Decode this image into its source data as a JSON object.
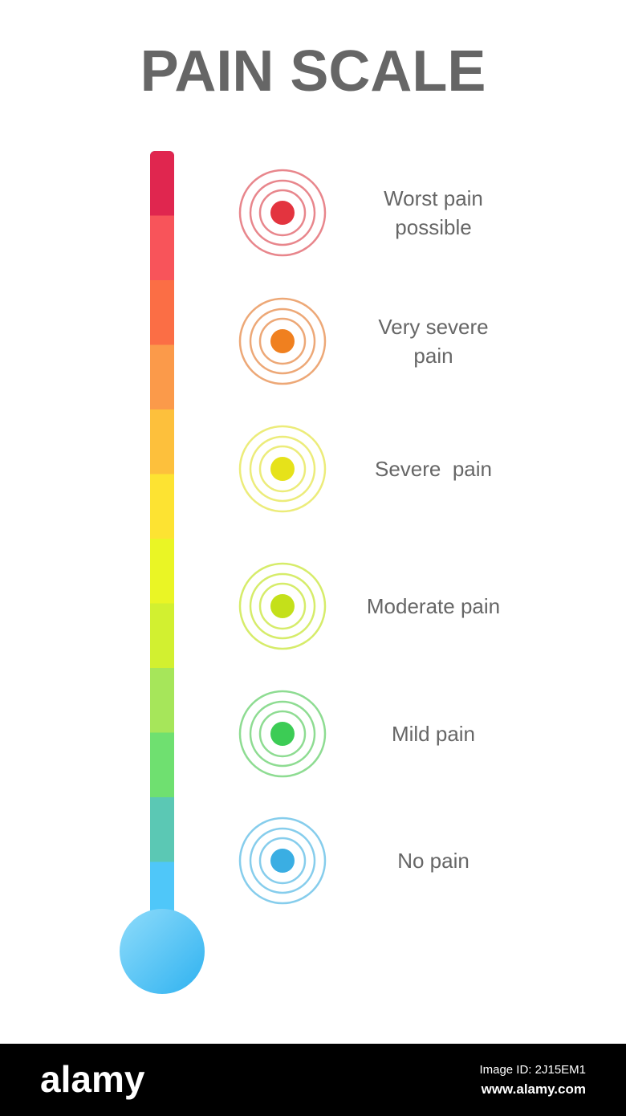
{
  "header": {
    "title": "PAIN SCALE"
  },
  "levels": [
    {
      "lines": [
        "Worst pain",
        "possible"
      ]
    },
    {
      "lines": [
        "Very severe",
        "pain"
      ]
    },
    {
      "lines": [
        "Severe  pain"
      ]
    },
    {
      "lines": [
        "Moderate pain"
      ]
    },
    {
      "lines": [
        "Mild pain"
      ]
    },
    {
      "lines": [
        "No pain"
      ]
    }
  ],
  "footer": {
    "brand": "alamy",
    "image_id": "Image ID: 2J15EM1",
    "url": "www.alamy.com"
  }
}
